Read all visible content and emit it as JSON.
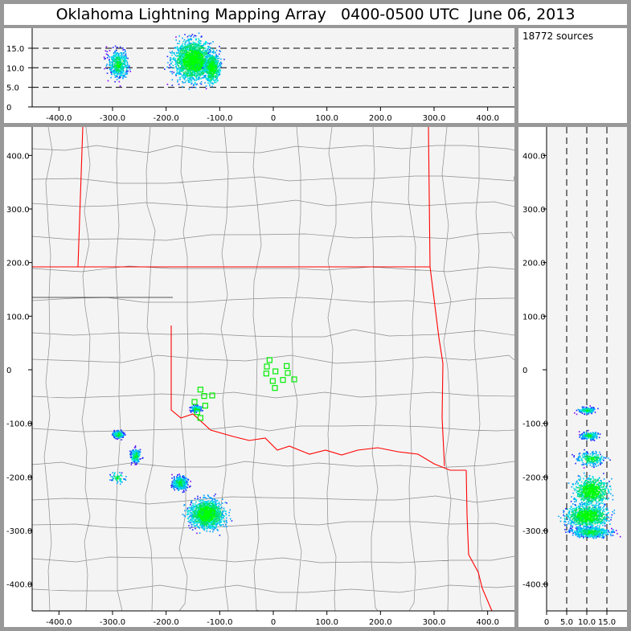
{
  "title": "Oklahoma Lightning Mapping Array   0400-0500 UTC  June 06, 2013",
  "source_count_label": "18772 sources",
  "colors": {
    "frame": "#989898",
    "plot_bg": "#f4f4f4",
    "state_border": "#ff0000",
    "county_border": "#8c8c8c",
    "station": "#00ee00",
    "density": [
      "#8000ff",
      "#2020ff",
      "#00a0ff",
      "#00e0e0",
      "#00e060",
      "#00ff00"
    ]
  },
  "chart_data": [
    {
      "panel": "plan-view",
      "type": "scatter",
      "xlim": [
        -450,
        450
      ],
      "ylim": [
        -450,
        450
      ],
      "xticks": [
        "-400.0",
        "-300.0",
        "-200.0",
        "-100.0",
        "0",
        "100.0",
        "200.0",
        "300.0",
        "400.0"
      ],
      "xtick_values": [
        -400,
        -300,
        -200,
        -100,
        0,
        100,
        200,
        300,
        400
      ],
      "yticks": [
        "400.0",
        "300.0",
        "200.0",
        "100.0",
        "0",
        "-100.0",
        "-200.0",
        "-300.0",
        "-400.0"
      ],
      "ytick_values": [
        400,
        300,
        200,
        100,
        0,
        -100,
        -200,
        -300,
        -400
      ],
      "source_clusters": [
        {
          "x": -145,
          "y": -72,
          "sx": 7,
          "sy": 4,
          "n": 160
        },
        {
          "x": -290,
          "y": -120,
          "sx": 7,
          "sy": 5,
          "n": 180
        },
        {
          "x": -258,
          "y": -160,
          "sx": 7,
          "sy": 9,
          "n": 220
        },
        {
          "x": -292,
          "y": -200,
          "sx": 10,
          "sy": 8,
          "n": 60
        },
        {
          "x": -175,
          "y": -210,
          "sx": 10,
          "sy": 9,
          "n": 400
        },
        {
          "x": -125,
          "y": -268,
          "sx": 22,
          "sy": 18,
          "n": 1400
        }
      ],
      "stations": [
        [
          -7,
          18
        ],
        [
          -12,
          6
        ],
        [
          4,
          -3
        ],
        [
          -13,
          -7
        ],
        [
          25,
          7
        ],
        [
          27,
          -6
        ],
        [
          39,
          -18
        ],
        [
          18,
          -19
        ],
        [
          -1,
          -21
        ],
        [
          3,
          -34
        ],
        [
          -136,
          -37
        ],
        [
          -129,
          -49
        ],
        [
          -147,
          -60
        ],
        [
          -127,
          -67
        ],
        [
          -114,
          -48
        ],
        [
          -142,
          -79
        ],
        [
          -136,
          -90
        ]
      ]
    },
    {
      "panel": "east-west-altitude",
      "type": "scatter",
      "xlim": [
        -450,
        450
      ],
      "ylim": [
        0,
        20
      ],
      "xticks": [
        "-400.0",
        "-300.0",
        "-200.0",
        "-100.0",
        "0",
        "100.0",
        "200.0",
        "300.0",
        "400.0"
      ],
      "xtick_values": [
        -400,
        -300,
        -200,
        -100,
        0,
        100,
        200,
        300,
        400
      ],
      "yticks": [
        "15.0",
        "10.0",
        "5.0",
        "0"
      ],
      "ytick_values": [
        15,
        10,
        5,
        0
      ],
      "reference_lines": [
        5,
        10,
        15
      ],
      "source_clusters": [
        {
          "x": -290,
          "y": 11,
          "sx": 14,
          "sy": 2.5,
          "n": 450
        },
        {
          "x": -150,
          "y": 12,
          "sx": 25,
          "sy": 3.5,
          "n": 1800
        },
        {
          "x": -115,
          "y": 10,
          "sx": 10,
          "sy": 2.5,
          "n": 600
        }
      ]
    },
    {
      "panel": "altitude-north-south",
      "type": "scatter",
      "xlim": [
        0,
        20
      ],
      "ylim": [
        -450,
        450
      ],
      "xticks": [
        "0",
        "5.0",
        "10.0",
        "15.0"
      ],
      "xtick_values": [
        0,
        5,
        10,
        15
      ],
      "yticks": [
        "400.0",
        "300.0",
        "200.0",
        "100.0",
        "0",
        "-100.0",
        "-200.0",
        "-300.0",
        "-400.0"
      ],
      "ytick_values": [
        400,
        300,
        200,
        100,
        0,
        -100,
        -200,
        -300,
        -400
      ],
      "reference_lines": [
        5,
        10,
        15
      ],
      "source_clusters": [
        {
          "x": 10,
          "y": -75,
          "sx": 1.5,
          "sy": 4,
          "n": 180
        },
        {
          "x": 10.5,
          "y": -122,
          "sx": 1.5,
          "sy": 5,
          "n": 180
        },
        {
          "x": 11,
          "y": -165,
          "sx": 2.5,
          "sy": 9,
          "n": 220
        },
        {
          "x": 11,
          "y": -225,
          "sx": 3,
          "sy": 18,
          "n": 700
        },
        {
          "x": 10,
          "y": -272,
          "sx": 3.5,
          "sy": 14,
          "n": 900
        },
        {
          "x": 11,
          "y": -302,
          "sx": 3.5,
          "sy": 7,
          "n": 500
        }
      ]
    }
  ]
}
